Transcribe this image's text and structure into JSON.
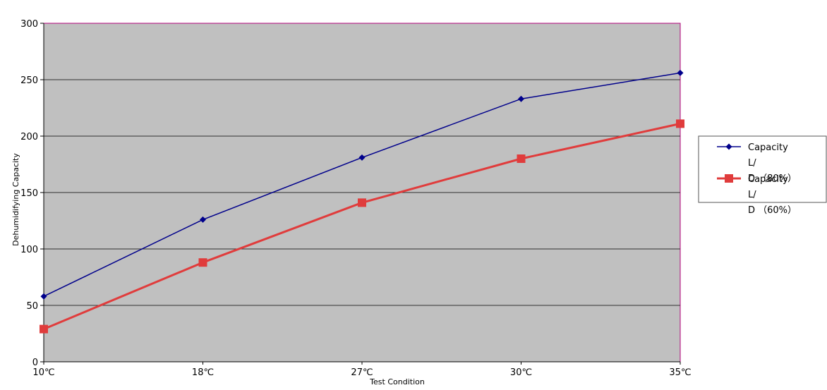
{
  "chart_data": {
    "type": "line",
    "categories": [
      "10℃",
      "18℃",
      "27℃",
      "30℃",
      "35℃"
    ],
    "series": [
      {
        "name": "Capacity L/D（80%）",
        "name_lines": [
          "Capacity",
          "L/",
          "D （80%）"
        ],
        "values": [
          58,
          126,
          181,
          233,
          256
        ],
        "color": "#00008b",
        "marker": "diamond"
      },
      {
        "name": "Capacity L/D（60%）",
        "name_lines": [
          "Capacity",
          "L/",
          "D （60%）"
        ],
        "values": [
          29,
          88,
          141,
          180,
          211
        ],
        "color": "#e03c3c",
        "marker": "square"
      }
    ],
    "xlabel": "Test Condition",
    "ylabel": "Dehumidifying Capacity",
    "ylim": [
      0,
      300
    ],
    "yticks": [
      0,
      50,
      100,
      150,
      200,
      250,
      300
    ],
    "grid": true,
    "legend_position": "right",
    "plot_background": "#c0c0c0",
    "plot_border_color": "#b0007a"
  }
}
